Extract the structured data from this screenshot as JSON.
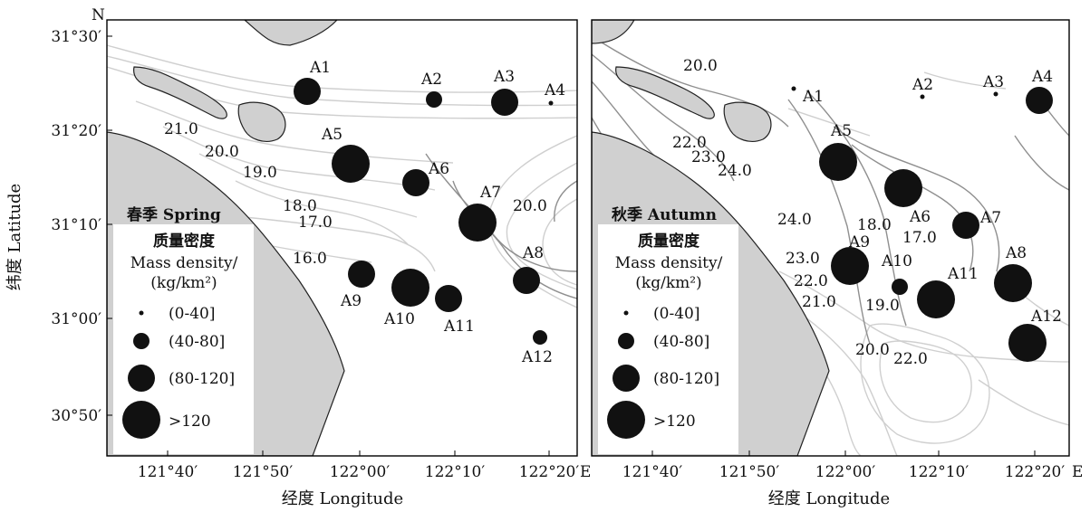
{
  "figure": {
    "y_axis_title": "纬度 Latitude",
    "north_mark": "N",
    "colors": {
      "land": "#d0d0d0",
      "isoline_light": "#cfcfcf",
      "isoline_dark": "#8f8f8f",
      "station": "#111111",
      "frame": "#000000"
    }
  },
  "panels": [
    {
      "id": "spring",
      "x_axis_title": "经度 Longitude",
      "x_ticks": [
        "121°40′",
        "121°50′",
        "122°00′",
        "122°10′",
        "122°20′"
      ],
      "x_end_label": "E",
      "y_ticks": [
        "31°30′",
        "31°20′",
        "31°10′",
        "31°00′",
        "30°50′"
      ],
      "legend": {
        "season": "春季 Spring",
        "title_cn": "质量密度",
        "title_en": "Mass density/",
        "unit": "(kg/km²)",
        "classes": [
          "(0-40]",
          "(40-80]",
          "(80-120]",
          ">120"
        ]
      },
      "chart_data": {
        "type": "scatter",
        "title": "春季 Spring",
        "xlabel": "经度 Longitude",
        "ylabel": "纬度 Latitude",
        "size_legend": [
          "(0-40]",
          "(40-80]",
          "(80-120]",
          ">120"
        ],
        "stations": [
          {
            "name": "A1",
            "class": "(80-120]"
          },
          {
            "name": "A2",
            "class": "(40-80]"
          },
          {
            "name": "A3",
            "class": "(80-120]"
          },
          {
            "name": "A4",
            "class": "(0-40]"
          },
          {
            "name": "A5",
            "class": ">120"
          },
          {
            "name": "A6",
            "class": "(80-120]"
          },
          {
            "name": "A7",
            "class": ">120"
          },
          {
            "name": "A8",
            "class": "(80-120]"
          },
          {
            "name": "A9",
            "class": "(80-120]"
          },
          {
            "name": "A10",
            "class": ">120"
          },
          {
            "name": "A11",
            "class": "(80-120]"
          },
          {
            "name": "A12",
            "class": "(40-80]"
          }
        ],
        "isoline_labels": [
          "21.0",
          "20.0",
          "19.0",
          "18.0",
          "17.0",
          "16.0",
          "20.0"
        ]
      }
    },
    {
      "id": "autumn",
      "x_axis_title": "经度 Longitude",
      "x_ticks": [
        "121°40′",
        "121°50′",
        "122°00′",
        "122°10′",
        "122°20′"
      ],
      "x_end_label": "E",
      "legend": {
        "season": "秋季 Autumn",
        "title_cn": "质量密度",
        "title_en": "Mass density/",
        "unit": "(kg/km²)",
        "classes": [
          "(0-40]",
          "(40-80]",
          "(80-120]",
          ">120"
        ]
      },
      "chart_data": {
        "type": "scatter",
        "title": "秋季 Autumn",
        "xlabel": "经度 Longitude",
        "size_legend": [
          "(0-40]",
          "(40-80]",
          "(80-120]",
          ">120"
        ],
        "stations": [
          {
            "name": "A1",
            "class": "(0-40]"
          },
          {
            "name": "A2",
            "class": "(0-40]"
          },
          {
            "name": "A3",
            "class": "(0-40]"
          },
          {
            "name": "A4",
            "class": "(80-120]"
          },
          {
            "name": "A5",
            "class": ">120"
          },
          {
            "name": "A6",
            "class": ">120"
          },
          {
            "name": "A7",
            "class": "(80-120]"
          },
          {
            "name": "A8",
            "class": ">120"
          },
          {
            "name": "A9",
            "class": ">120"
          },
          {
            "name": "A10",
            "class": "(40-80]"
          },
          {
            "name": "A11",
            "class": ">120"
          },
          {
            "name": "A12",
            "class": ">120"
          }
        ],
        "isoline_labels": [
          "20.0",
          "22.0",
          "23.0",
          "24.0",
          "24.0",
          "18.0",
          "17.0",
          "23.0",
          "22.0",
          "21.0",
          "19.0",
          "20.0",
          "22.0"
        ]
      }
    }
  ]
}
